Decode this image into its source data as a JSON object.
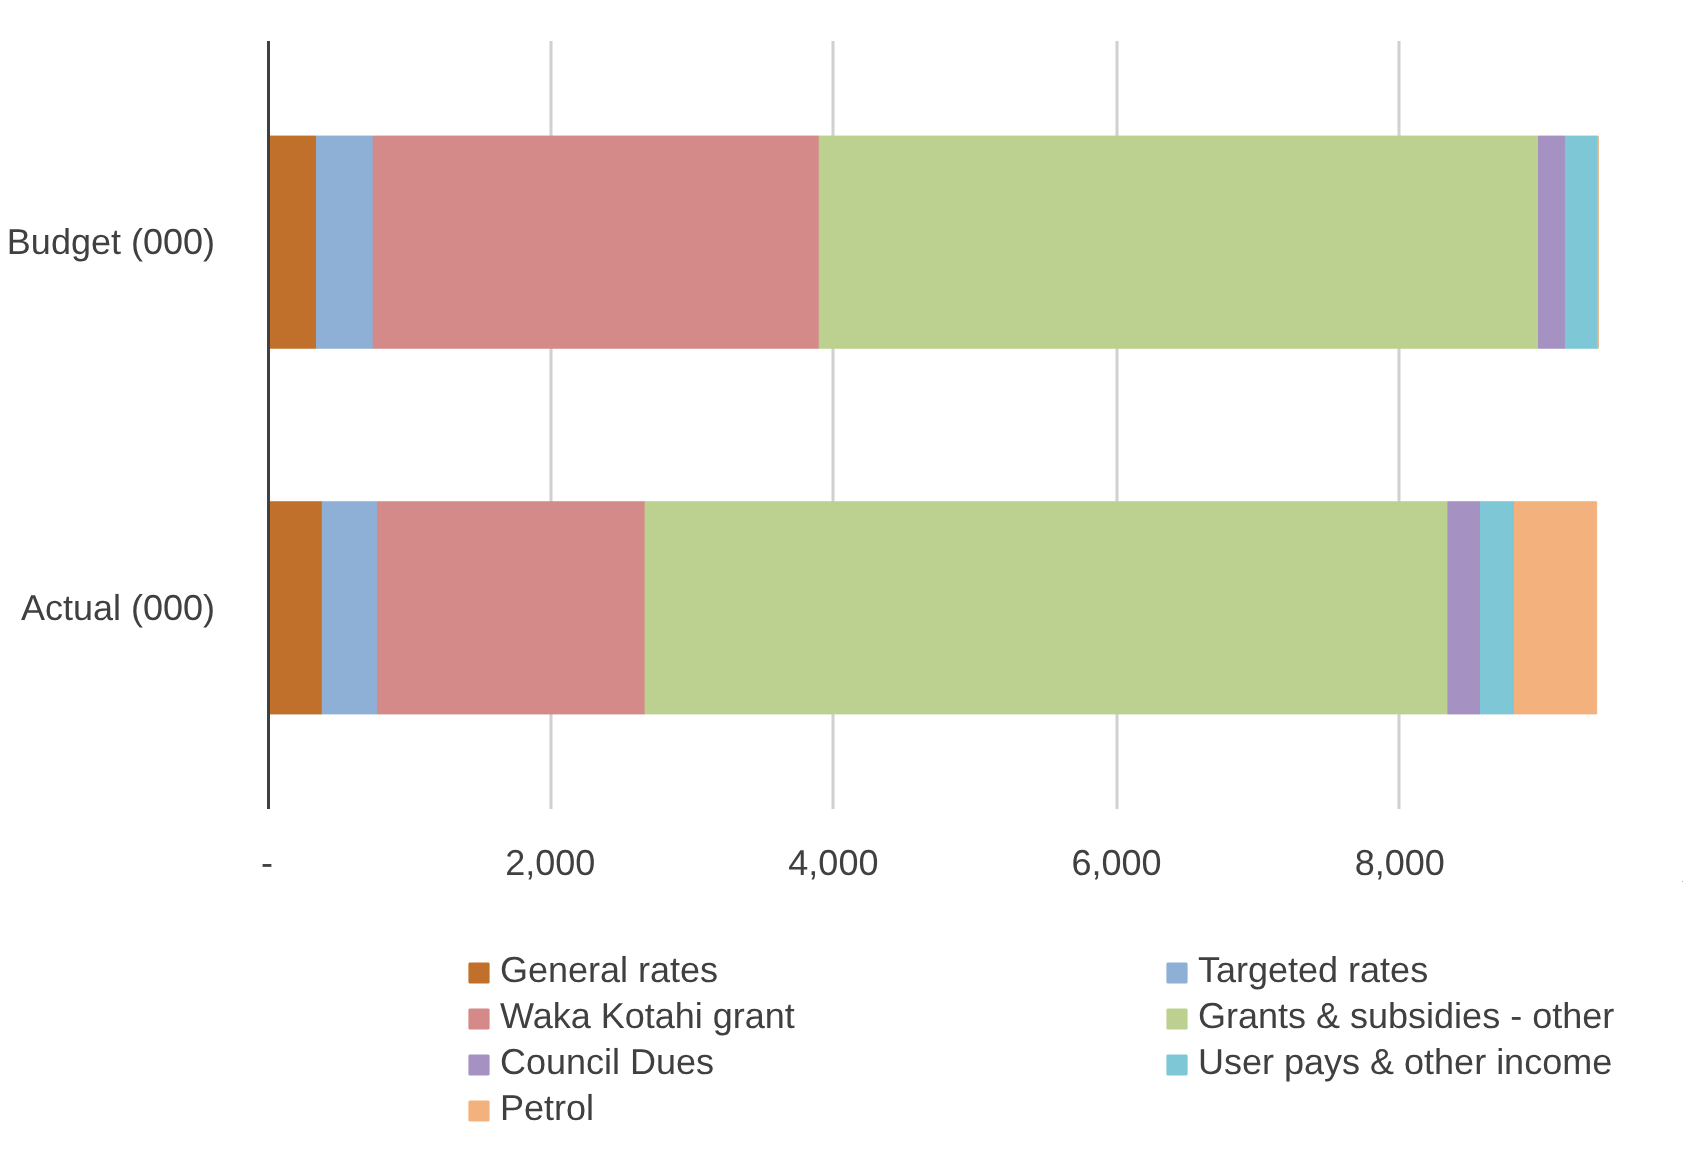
{
  "chart_data": {
    "type": "bar",
    "orientation": "horizontal",
    "stacked": true,
    "categories": [
      "Budget (000)",
      "Actual (000)"
    ],
    "series": [
      {
        "name": "General rates",
        "color": "#c0702a",
        "values": [
          350,
          390
        ]
      },
      {
        "name": "Targeted rates",
        "color": "#8eb0d6",
        "values": [
          400,
          390
        ]
      },
      {
        "name": "Waka Kotahi grant",
        "color": "#d48a89",
        "values": [
          3150,
          1890
        ]
      },
      {
        "name": "Grants & subsidies - other",
        "color": "#bcd18f",
        "values": [
          5080,
          5670
        ]
      },
      {
        "name": "Council Dues",
        "color": "#a592c2",
        "values": [
          190,
          230
        ]
      },
      {
        "name": "User pays & other income",
        "color": "#7ec7d6",
        "values": [
          230,
          240
        ]
      },
      {
        "name": "Petrol",
        "color": "#f3b27d",
        "values": [
          0,
          580
        ]
      }
    ],
    "xlim": [
      0,
      10000
    ],
    "xticks": [
      {
        "value": 0,
        "label": "-"
      },
      {
        "value": 2000,
        "label": "2,000"
      },
      {
        "value": 4000,
        "label": "4,000"
      },
      {
        "value": 6000,
        "label": "6,000"
      },
      {
        "value": 8000,
        "label": "8,000"
      }
    ],
    "grid": "x",
    "legend": "bottom"
  }
}
